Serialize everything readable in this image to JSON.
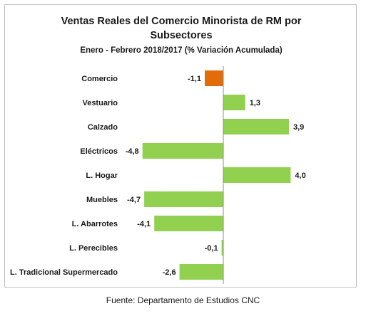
{
  "chart_data": {
    "type": "bar",
    "orientation": "horizontal",
    "title": "Ventas Reales del Comercio Minorista de RM por Subsectores",
    "title_line1": "Ventas Reales del Comercio Minorista de RM por",
    "title_line2": "Subsectores",
    "subtitle": "Enero - Febrero    2018/2017 (% Variación Acumulada)",
    "categories": [
      "Comercio",
      "Vestuario",
      "Calzado",
      "Eléctricos",
      "L. Hogar",
      "Muebles",
      "L. Abarrotes",
      "L. Perecibles",
      "L. Tradicional Supermercado"
    ],
    "values": [
      -1.1,
      1.3,
      3.9,
      -4.8,
      4.0,
      -4.7,
      -4.1,
      -0.1,
      -2.6
    ],
    "value_labels": [
      "-1,1",
      "1,3",
      "3,9",
      "-4,8",
      "4,0",
      "-4,7",
      "-4,1",
      "-0,1",
      "-2,6"
    ],
    "highlight_category": "Comercio",
    "colors": {
      "highlight": "#E36C0A",
      "bars": "#92D050",
      "axis": "#8c8c8c"
    },
    "xlim": [
      -4.8,
      4.0
    ],
    "grid": false,
    "legend": "none"
  },
  "source": "Fuente: Departamento de Estudios CNC"
}
